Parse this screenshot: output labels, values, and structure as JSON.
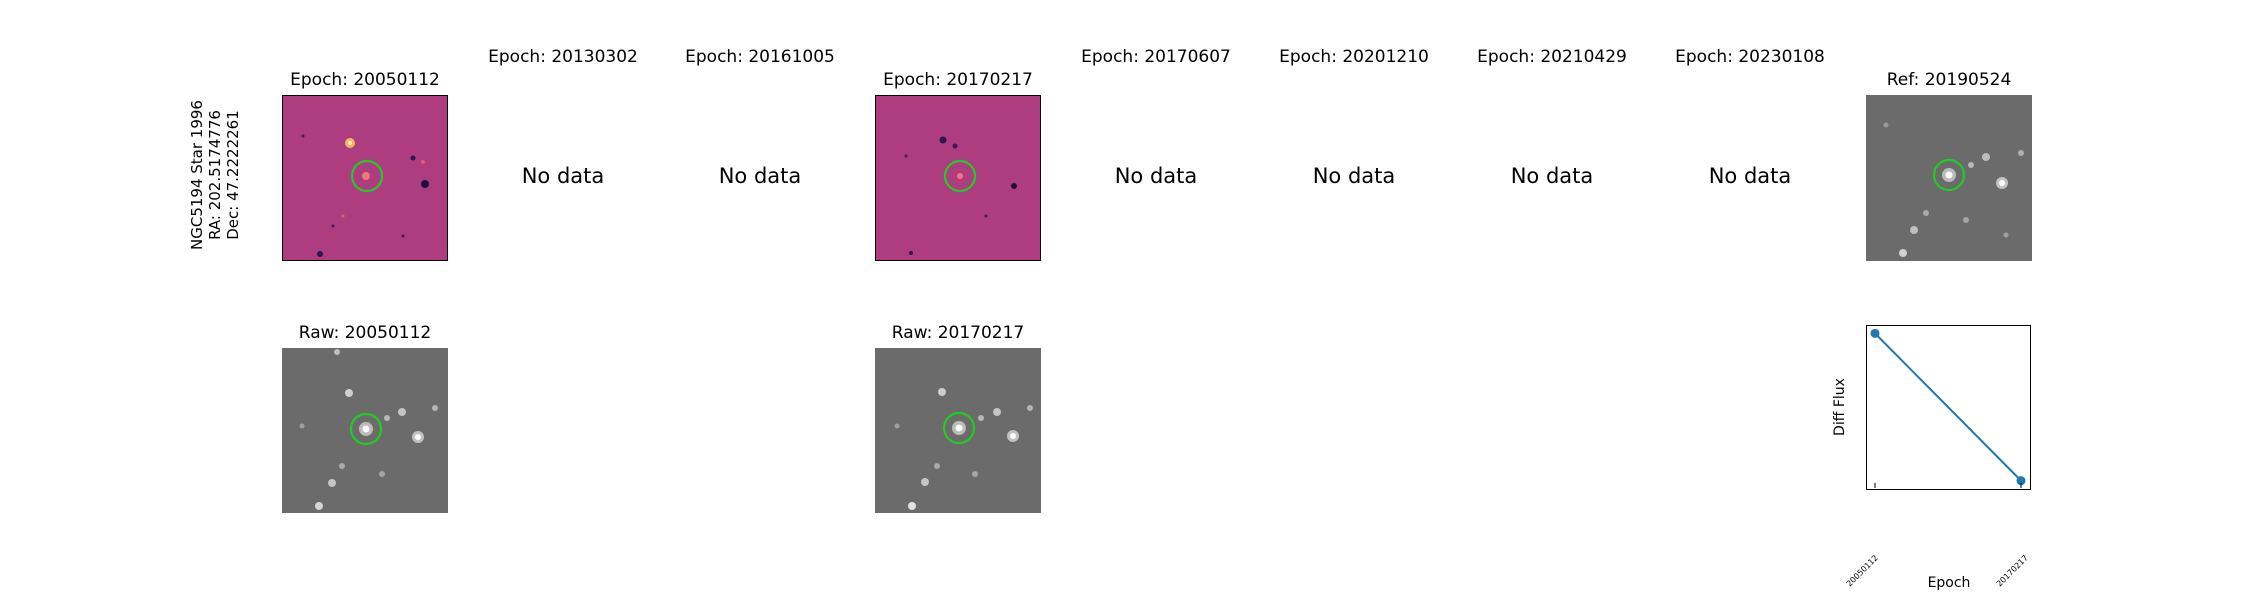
{
  "star_label": {
    "name": "NGC5194 Star 1996",
    "ra": "RA: 202.5174776",
    "dec": "Dec: 47.2222261"
  },
  "epochs": [
    {
      "title": "Epoch: 20050112",
      "status": "data"
    },
    {
      "title": "Epoch: 20130302",
      "status": "No data"
    },
    {
      "title": "Epoch: 20161005",
      "status": "No data"
    },
    {
      "title": "Epoch: 20170217",
      "status": "data"
    },
    {
      "title": "Epoch: 20170607",
      "status": "No data"
    },
    {
      "title": "Epoch: 20201210",
      "status": "No data"
    },
    {
      "title": "Epoch: 20210429",
      "status": "No data"
    },
    {
      "title": "Epoch: 20230108",
      "status": "No data"
    }
  ],
  "ref_title": "Ref: 20190524",
  "raw_titles": [
    "Raw: 20050112",
    "Raw: 20170217"
  ],
  "colors": {
    "diff_background": "#b23f80",
    "raw_background": "#6b6b6b",
    "circle": "#22cc22",
    "line": "#1f77b4"
  },
  "chart_data": {
    "type": "line",
    "title": "",
    "xlabel": "Epoch",
    "ylabel": "Diff Flux",
    "x": [
      "20050112",
      "20170217"
    ],
    "series": [
      {
        "values": [
          1.0,
          0.0
        ]
      }
    ],
    "ylim": [
      -0.05,
      1.05
    ],
    "grid": false
  }
}
